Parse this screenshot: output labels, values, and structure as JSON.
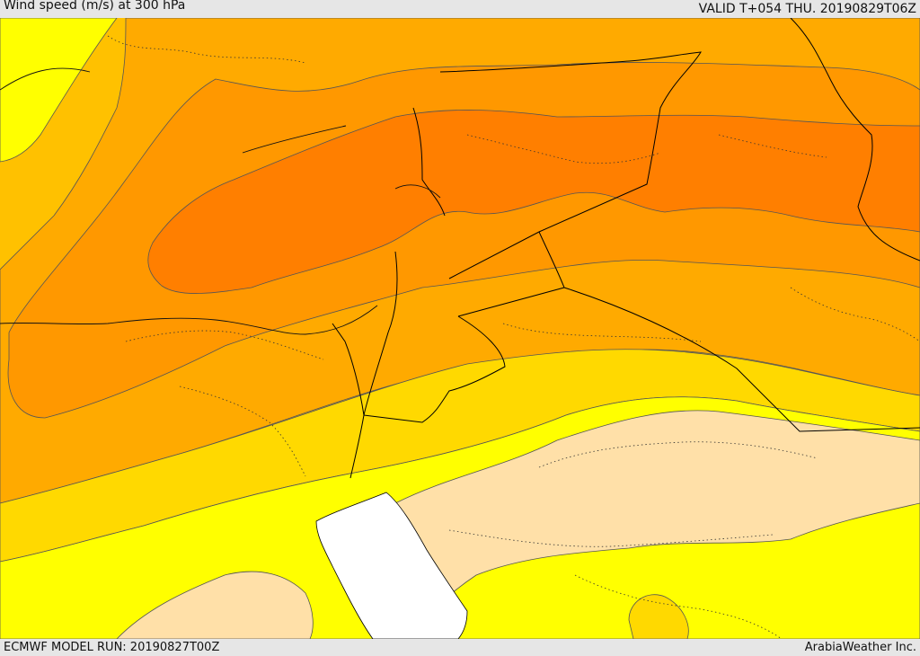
{
  "header": {
    "title": "Wind speed (m/s) at 300 hPa",
    "valid": "VALID T+054 THU. 20190829T06Z"
  },
  "footer": {
    "model_run": "ECMWF MODEL RUN: 20190827T00Z",
    "credit": "ArabiaWeather Inc."
  },
  "map": {
    "variable": "wind speed",
    "level_hPa": 300,
    "colors": {
      "weakest": "#ffe0a8",
      "band_1": "#ffff00",
      "band_2": "#ffd900",
      "band_3": "#ffc100",
      "band_4": "#ffaa00",
      "band_5": "#ff9800",
      "strongest": "#ff7f00",
      "water": "#ffffff",
      "border_line": "#000000",
      "contour_line": "#555555"
    }
  }
}
